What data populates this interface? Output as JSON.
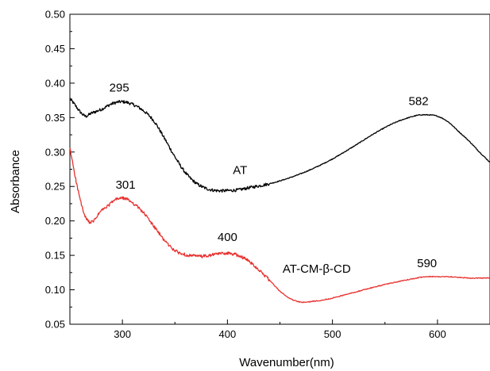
{
  "chart_data": {
    "type": "line",
    "xlabel": "Wavenumber(nm)",
    "ylabel": "Absorbance",
    "xlim": [
      250,
      650
    ],
    "ylim": [
      0.05,
      0.5
    ],
    "x_ticks": [
      300,
      400,
      500,
      600
    ],
    "x_tick_labels": [
      "300",
      "400",
      "500",
      "600"
    ],
    "y_ticks": [
      0.05,
      0.1,
      0.15,
      0.2,
      0.25,
      0.3,
      0.35,
      0.4,
      0.45,
      0.5
    ],
    "y_tick_labels": [
      "0.05",
      "0.10",
      "0.15",
      "0.20",
      "0.25",
      "0.30",
      "0.35",
      "0.40",
      "0.45",
      "0.50"
    ],
    "grid": false,
    "legend": "none",
    "series": [
      {
        "name": "AT",
        "color": "#000000",
        "x": [
          250,
          255,
          260,
          265,
          270,
          280,
          290,
          300,
          310,
          320,
          330,
          340,
          350,
          360,
          370,
          380,
          390,
          400,
          410,
          420,
          440,
          460,
          480,
          500,
          520,
          540,
          560,
          580,
          590,
          600,
          610,
          620,
          630,
          640,
          650
        ],
        "y": [
          0.378,
          0.368,
          0.358,
          0.352,
          0.356,
          0.362,
          0.37,
          0.373,
          0.369,
          0.36,
          0.345,
          0.32,
          0.293,
          0.27,
          0.255,
          0.247,
          0.244,
          0.244,
          0.245,
          0.248,
          0.254,
          0.263,
          0.275,
          0.29,
          0.308,
          0.327,
          0.343,
          0.353,
          0.354,
          0.352,
          0.344,
          0.33,
          0.316,
          0.3,
          0.285
        ]
      },
      {
        "name": "AT-CM-β-CD",
        "color": "#e8312f",
        "x": [
          250,
          253,
          256,
          260,
          264,
          268,
          272,
          276,
          280,
          285,
          290,
          295,
          300,
          305,
          310,
          320,
          330,
          340,
          350,
          360,
          370,
          380,
          390,
          400,
          410,
          420,
          430,
          440,
          450,
          460,
          470,
          480,
          490,
          500,
          520,
          540,
          560,
          580,
          590,
          600,
          610,
          620,
          630,
          640,
          650
        ],
        "y": [
          0.305,
          0.282,
          0.257,
          0.23,
          0.208,
          0.199,
          0.199,
          0.207,
          0.215,
          0.22,
          0.227,
          0.232,
          0.233,
          0.231,
          0.226,
          0.212,
          0.192,
          0.172,
          0.157,
          0.151,
          0.149,
          0.149,
          0.152,
          0.153,
          0.15,
          0.142,
          0.129,
          0.114,
          0.098,
          0.087,
          0.082,
          0.083,
          0.085,
          0.088,
          0.096,
          0.104,
          0.111,
          0.117,
          0.119,
          0.119,
          0.119,
          0.118,
          0.117,
          0.117,
          0.117
        ]
      }
    ],
    "annotations": [
      {
        "text": "295",
        "x": 297,
        "y": 0.388
      },
      {
        "text": "582",
        "x": 582,
        "y": 0.368
      },
      {
        "text": "AT",
        "x": 412,
        "y": 0.268
      },
      {
        "text": "301",
        "x": 303,
        "y": 0.247
      },
      {
        "text": "400",
        "x": 400,
        "y": 0.171
      },
      {
        "text": "AT-CM-β-CD",
        "x": 485,
        "y": 0.125
      },
      {
        "text": "590",
        "x": 590,
        "y": 0.133
      }
    ]
  }
}
